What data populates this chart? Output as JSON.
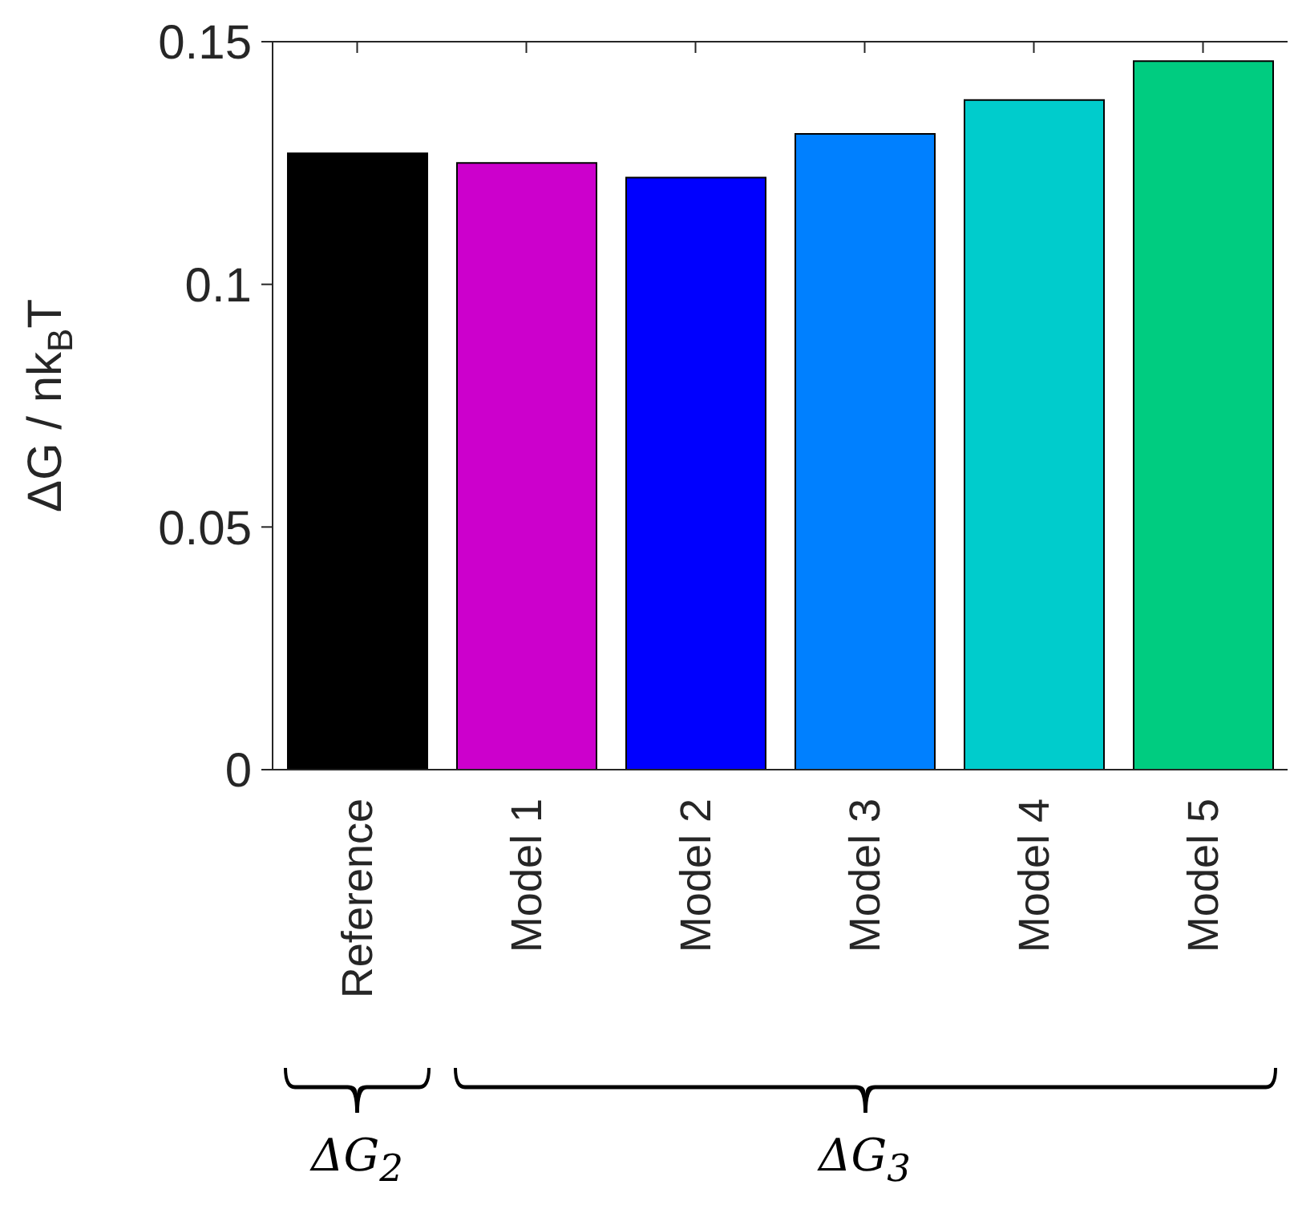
{
  "chart_data": {
    "type": "bar",
    "ylabel": "ΔG / nk$_{B}$T",
    "categories": [
      "Reference",
      "Model 1",
      "Model 2",
      "Model 3",
      "Model 4",
      "Model 5"
    ],
    "values": [
      0.127,
      0.125,
      0.122,
      0.131,
      0.138,
      0.146
    ],
    "colors": [
      "#000000",
      "#cc00cc",
      "#0000ff",
      "#0080ff",
      "#00cccc",
      "#00cc80"
    ],
    "ylim": [
      0,
      0.15
    ],
    "yticks": [
      0,
      0.05,
      0.1,
      0.15
    ],
    "annotations": [
      "ΔG$_{2}$",
      "ΔG$_{3}$"
    ]
  }
}
